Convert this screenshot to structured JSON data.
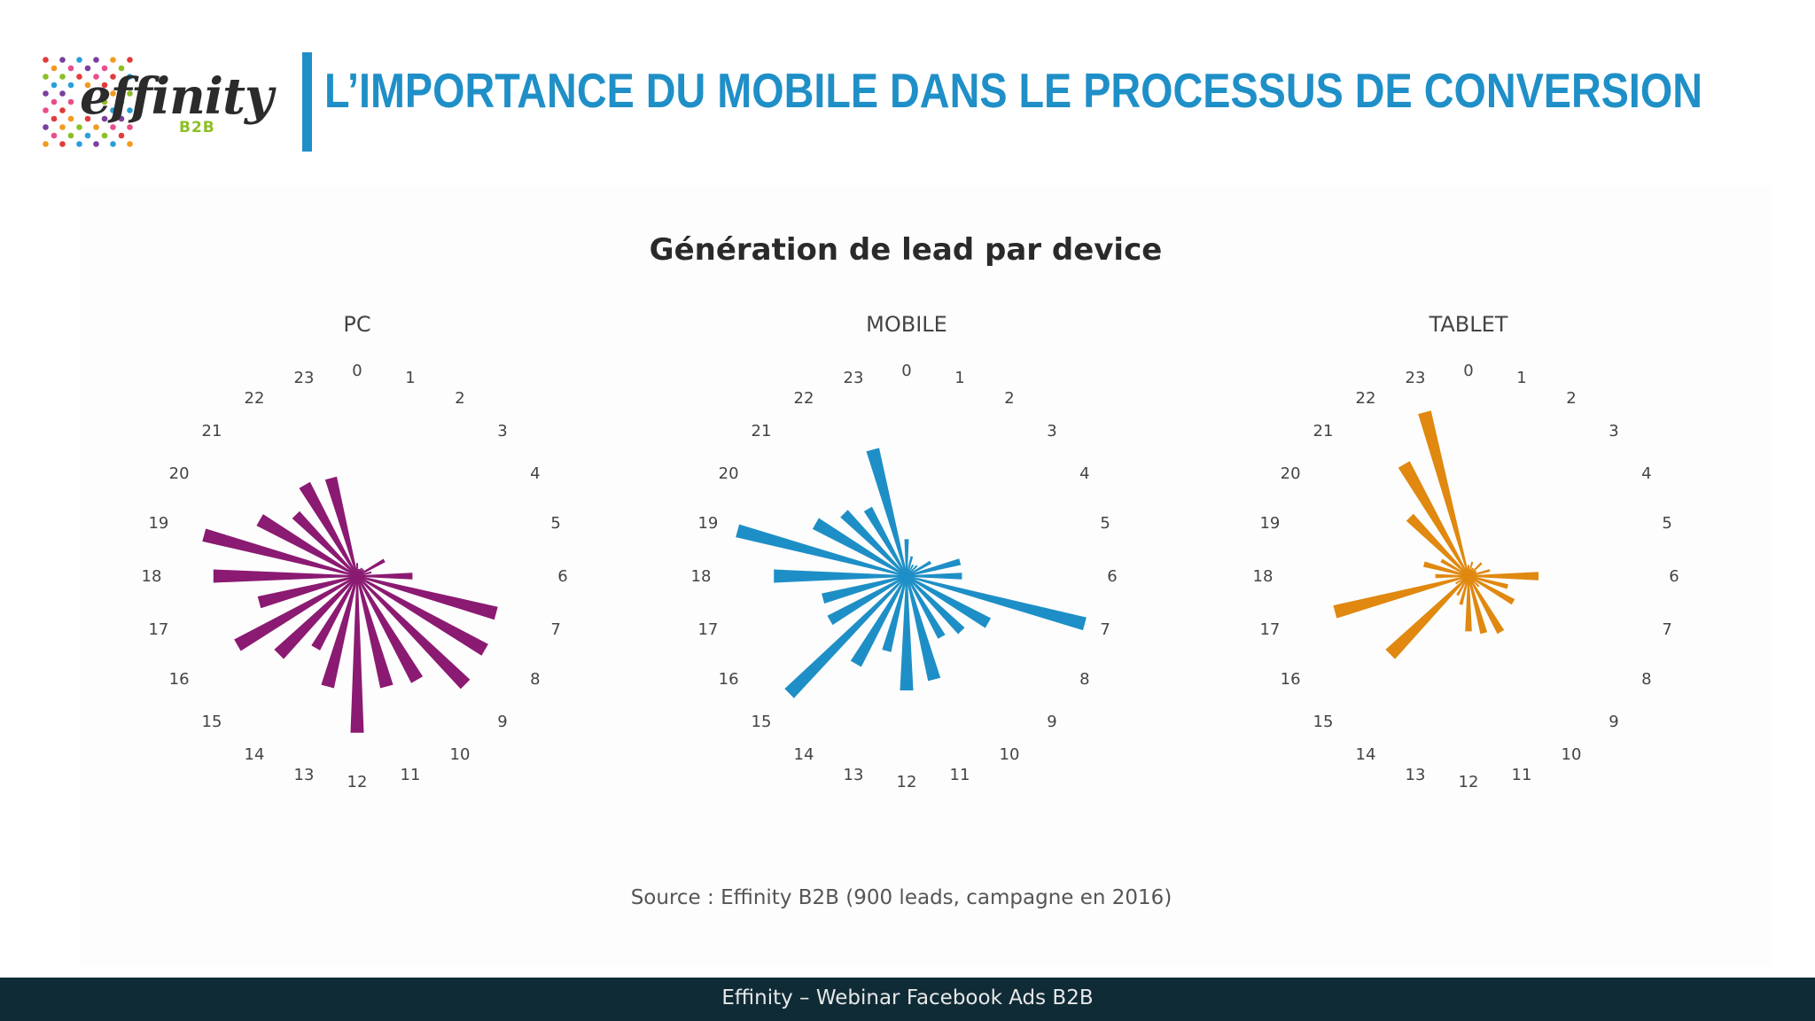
{
  "header": {
    "logo": {
      "word": "effinity",
      "sub": "B2B"
    },
    "title": "L’IMPORTANCE DU MOBILE DANS LE PROCESSUS DE CONVERSION",
    "title_color": "#1f8fc7"
  },
  "chart_data": [
    {
      "type": "radial-bar",
      "title": "PC",
      "color": "#8b1a72",
      "categories": [
        "0",
        "1",
        "2",
        "3",
        "4",
        "5",
        "6",
        "7",
        "8",
        "9",
        "10",
        "11",
        "12",
        "13",
        "14",
        "15",
        "16",
        "17",
        "18",
        "19",
        "20",
        "21",
        "22",
        "23"
      ],
      "values": [
        0.07,
        0.04,
        0.05,
        0.05,
        0.17,
        0.08,
        0.3,
        0.78,
        0.8,
        0.83,
        0.65,
        0.62,
        0.85,
        0.62,
        0.45,
        0.6,
        0.75,
        0.55,
        0.78,
        0.86,
        0.61,
        0.47,
        0.57,
        0.55
      ]
    },
    {
      "type": "radial-bar",
      "title": "MOBILE",
      "color": "#1e8fc6",
      "categories": [
        "0",
        "1",
        "2",
        "3",
        "4",
        "5",
        "6",
        "7",
        "8",
        "9",
        "10",
        "11",
        "12",
        "13",
        "14",
        "15",
        "16",
        "17",
        "18",
        "19",
        "20",
        "21",
        "22",
        "23"
      ],
      "values": [
        0.2,
        0.11,
        0.07,
        0.08,
        0.15,
        0.3,
        0.3,
        1.0,
        0.51,
        0.42,
        0.38,
        0.58,
        0.62,
        0.42,
        0.55,
        0.9,
        0.48,
        0.47,
        0.72,
        0.95,
        0.57,
        0.48,
        0.42,
        0.71
      ]
    },
    {
      "type": "radial-bar",
      "title": "TABLET",
      "color": "#e0880f",
      "categories": [
        "0",
        "1",
        "2",
        "3",
        "4",
        "5",
        "6",
        "7",
        "8",
        "9",
        "10",
        "11",
        "12",
        "13",
        "14",
        "15",
        "16",
        "17",
        "18",
        "19",
        "20",
        "21",
        "22",
        "23"
      ],
      "values": [
        0.06,
        0.08,
        0.05,
        0.1,
        0.05,
        0.12,
        0.38,
        0.22,
        0.28,
        0.08,
        0.35,
        0.32,
        0.3,
        0.16,
        0.12,
        0.6,
        0.08,
        0.75,
        0.18,
        0.25,
        0.17,
        0.45,
        0.7,
        0.92
      ]
    }
  ],
  "chart_title": "Génération de lead par device",
  "source": "Source : Effinity B2B (900 leads, campagne en 2016)",
  "footer": "Effinity – Webinar Facebook Ads B2B"
}
